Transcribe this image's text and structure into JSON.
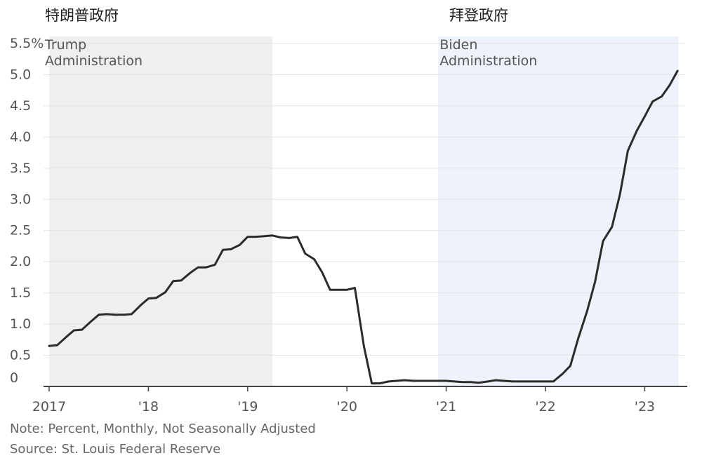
{
  "labels": {
    "trump_cn": "特朗普政府",
    "biden_cn": "拜登政府"
  },
  "footer": {
    "note": "Note: Percent, Monthly, Not Seasonally Adjusted",
    "source": "Source: St. Louis Federal Reserve"
  },
  "colors": {
    "line": "#2b2b2b",
    "trump_shade": "#efefef",
    "biden_shade": "#eef2fa",
    "grid": "#e3e3e3",
    "axis": "#444444"
  },
  "chart_data": {
    "type": "line",
    "title": "",
    "xlabel": "",
    "ylabel": "",
    "ylim": [
      0,
      5.5
    ],
    "xlim": [
      2017.0,
      2023.4
    ],
    "y_ticks": [
      0,
      0.5,
      1.0,
      1.5,
      2.0,
      2.5,
      3.0,
      3.5,
      4.0,
      4.5,
      5.0,
      5.5
    ],
    "y_tick_labels": [
      "0",
      "0.5",
      "1.0",
      "1.5",
      "2.0",
      "2.5",
      "3.0",
      "3.5",
      "4.0",
      "4.5",
      "5.0",
      "5.5%"
    ],
    "x_ticks": [
      2017,
      2018,
      2019,
      2020,
      2021,
      2022,
      2023
    ],
    "x_tick_labels": [
      "2017",
      "'18",
      "'19",
      "'20",
      "'21",
      "'22",
      "'23"
    ],
    "grid": true,
    "shaded_regions": [
      {
        "label_lines": [
          "Trump",
          "Administration"
        ],
        "from": 2017.0,
        "to": 2019.25
      },
      {
        "label_lines": [
          "Biden",
          "Administration"
        ],
        "from": 2020.92,
        "to": 2023.34
      }
    ],
    "series": [
      {
        "x": [
          2017.0,
          2017.08,
          2017.17,
          2017.25,
          2017.33,
          2017.42,
          2017.5,
          2017.58,
          2017.67,
          2017.75,
          2017.83,
          2017.92,
          2018.0,
          2018.08,
          2018.17,
          2018.25,
          2018.33,
          2018.42,
          2018.5,
          2018.58,
          2018.67,
          2018.75,
          2018.83,
          2018.92,
          2019.0,
          2019.08,
          2019.17,
          2019.25,
          2019.33,
          2019.42,
          2019.5,
          2019.58,
          2019.67,
          2019.75,
          2019.83,
          2019.92,
          2020.0,
          2020.08,
          2020.17,
          2020.25,
          2020.33,
          2020.42,
          2020.5,
          2020.58,
          2020.67,
          2020.75,
          2020.83,
          2020.92,
          2021.0,
          2021.08,
          2021.17,
          2021.25,
          2021.33,
          2021.42,
          2021.5,
          2021.58,
          2021.67,
          2021.75,
          2021.83,
          2021.92,
          2022.0,
          2022.08,
          2022.17,
          2022.25,
          2022.33,
          2022.42,
          2022.5,
          2022.58,
          2022.67,
          2022.75,
          2022.83,
          2022.92,
          2023.0,
          2023.08,
          2023.17,
          2023.25,
          2023.33
        ],
        "y": [
          0.65,
          0.66,
          0.79,
          0.9,
          0.91,
          1.04,
          1.15,
          1.16,
          1.15,
          1.15,
          1.16,
          1.3,
          1.41,
          1.42,
          1.51,
          1.69,
          1.7,
          1.82,
          1.91,
          1.91,
          1.95,
          2.19,
          2.2,
          2.27,
          2.4,
          2.4,
          2.41,
          2.42,
          2.39,
          2.38,
          2.4,
          2.13,
          2.04,
          1.83,
          1.55,
          1.55,
          1.55,
          1.58,
          0.65,
          0.05,
          0.05,
          0.08,
          0.09,
          0.1,
          0.09,
          0.09,
          0.09,
          0.09,
          0.09,
          0.08,
          0.07,
          0.07,
          0.06,
          0.08,
          0.1,
          0.09,
          0.08,
          0.08,
          0.08,
          0.08,
          0.08,
          0.08,
          0.2,
          0.33,
          0.77,
          1.21,
          1.68,
          2.33,
          2.56,
          3.08,
          3.78,
          4.1,
          4.33,
          4.57,
          4.65,
          4.83,
          5.06
        ]
      }
    ]
  }
}
